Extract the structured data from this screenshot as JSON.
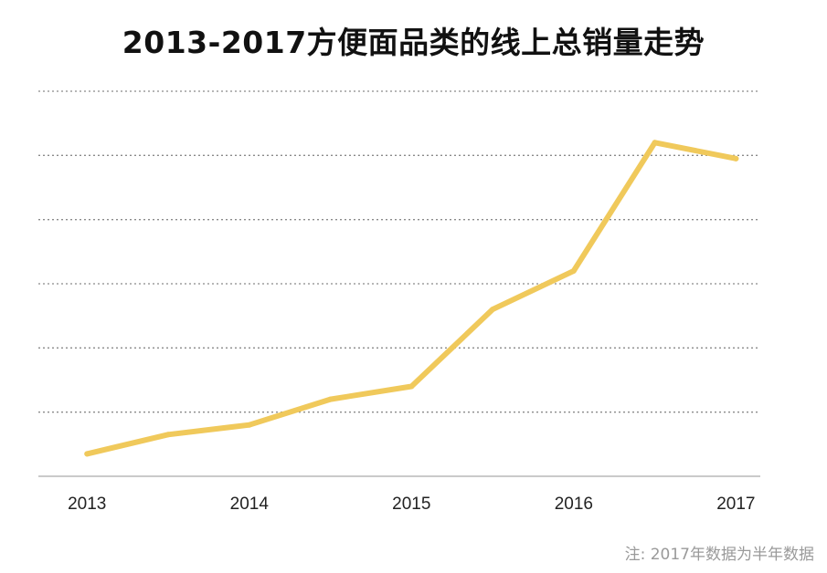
{
  "chart_data": {
    "type": "line",
    "title": "2013-2017方便面品类的线上总销量走势",
    "xlabel": "",
    "ylabel": "",
    "x_tick_labels": [
      "2013",
      "2014",
      "2015",
      "2016",
      "2017"
    ],
    "x_tick_positions": [
      2013,
      2014,
      2015,
      2016,
      2017
    ],
    "xlim": [
      2012.7,
      2017.15
    ],
    "series": [
      {
        "color": "#f0c95b",
        "x": [
          2013.0,
          2013.5,
          2014.0,
          2014.5,
          2015.0,
          2015.5,
          2016.0,
          2016.5,
          2017.0
        ],
        "y": [
          0.35,
          0.65,
          0.8,
          1.2,
          1.4,
          2.6,
          3.2,
          5.2,
          4.95
        ]
      }
    ],
    "ylim": [
      0,
      6
    ],
    "y_gridlines": [
      1,
      2,
      3,
      4,
      5,
      6
    ],
    "y_tick_labels_shown": false,
    "grid": "horizontal dotted",
    "footnote": "注: 2017年数据为半年数据"
  }
}
